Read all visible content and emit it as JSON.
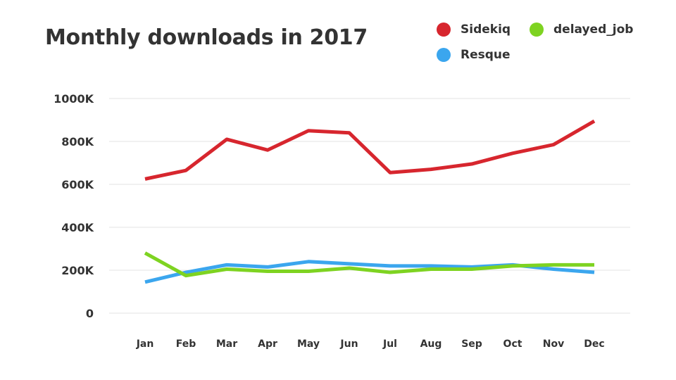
{
  "chart_data": {
    "type": "line",
    "title": "Monthly downloads in 2017",
    "xlabel": "",
    "ylabel": "",
    "categories": [
      "Jan",
      "Feb",
      "Mar",
      "Apr",
      "May",
      "Jun",
      "Jul",
      "Aug",
      "Sep",
      "Oct",
      "Nov",
      "Dec"
    ],
    "y_ticks": [
      0,
      200,
      400,
      600,
      800,
      1000
    ],
    "y_tick_labels": [
      "0",
      "200K",
      "400K",
      "600K",
      "800K",
      "1000K"
    ],
    "ylim": [
      0,
      1000
    ],
    "value_unit": "thousands",
    "grid": true,
    "legend_position": "top-right",
    "series": [
      {
        "name": "Sidekiq",
        "color": "#d7262e",
        "values": [
          625,
          665,
          810,
          760,
          850,
          840,
          655,
          670,
          695,
          745,
          785,
          895
        ]
      },
      {
        "name": "Resque",
        "color": "#3ba6ee",
        "values": [
          145,
          190,
          225,
          215,
          240,
          230,
          220,
          220,
          215,
          225,
          205,
          190
        ]
      },
      {
        "name": "delayed_job",
        "color": "#7ed321",
        "values": [
          280,
          175,
          205,
          195,
          195,
          210,
          190,
          205,
          205,
          220,
          225,
          225
        ]
      }
    ]
  }
}
